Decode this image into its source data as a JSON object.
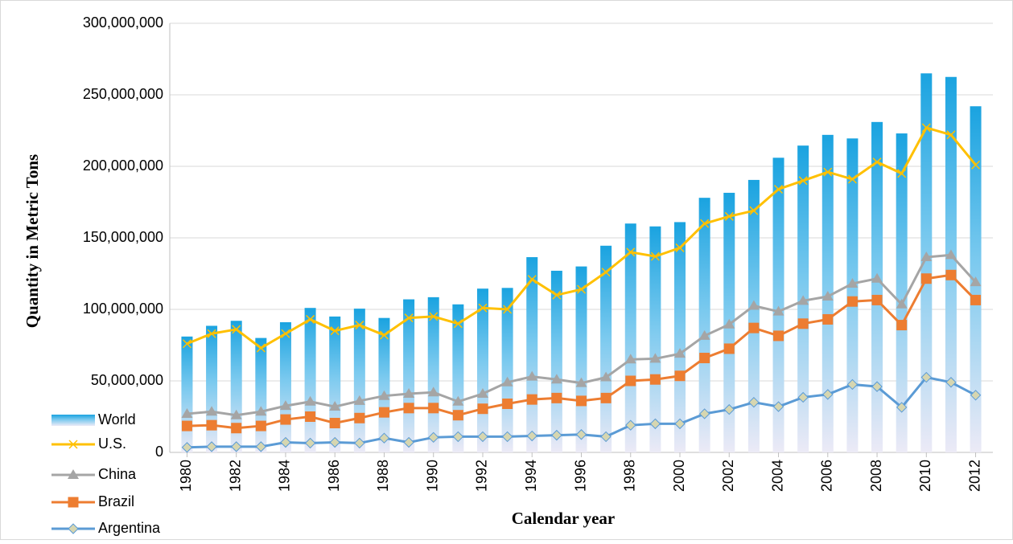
{
  "chart_data": {
    "type": "bar",
    "ylabel": "Quantity in Metric Tons",
    "xlabel": "Calendar year",
    "x": [
      1980,
      1981,
      1982,
      1983,
      1984,
      1985,
      1986,
      1987,
      1988,
      1989,
      1990,
      1991,
      1992,
      1993,
      1994,
      1995,
      1996,
      1997,
      1998,
      1999,
      2000,
      2001,
      2002,
      2003,
      2004,
      2005,
      2006,
      2007,
      2008,
      2009,
      2010,
      2011,
      2012
    ],
    "xlim": [
      1979.3,
      2012.7
    ],
    "xticks": [
      1980,
      1982,
      1984,
      1986,
      1988,
      1990,
      1992,
      1994,
      1996,
      1998,
      2000,
      2002,
      2004,
      2006,
      2008,
      2010,
      2012
    ],
    "ylim": [
      0,
      300000000
    ],
    "yticks": [
      0,
      {
        "value": 50000000,
        "label": "50,000,000"
      },
      {
        "value": 100000000,
        "label": "100,000,000"
      },
      {
        "value": 150000000,
        "label": "150,000,000"
      },
      {
        "value": 200000000,
        "label": "200,000,000"
      },
      {
        "value": 250000000,
        "label": "250,000,000"
      },
      {
        "value": 300000000,
        "label": "300,000,000"
      }
    ],
    "grid": true,
    "legend": "lower left",
    "series": [
      {
        "name": "World",
        "type": "bar",
        "color": "#1aa3e0",
        "values": [
          81000000,
          88500000,
          92000000,
          80000000,
          91000000,
          101000000,
          95000000,
          100500000,
          94000000,
          107000000,
          108500000,
          103500000,
          114500000,
          115000000,
          136500000,
          127000000,
          130000000,
          144500000,
          160000000,
          158000000,
          161000000,
          178000000,
          181500000,
          190500000,
          206000000,
          214500000,
          222000000,
          219500000,
          231000000,
          223000000,
          265000000,
          262500000,
          242000000
        ]
      },
      {
        "name": "U.S.",
        "type": "line",
        "color": "#ffc000",
        "marker": "x",
        "values": [
          76000000,
          83000000,
          86000000,
          73000000,
          83000000,
          93000000,
          85000000,
          89000000,
          82000000,
          94000000,
          95000000,
          90000000,
          101000000,
          100000000,
          121000000,
          110000000,
          114000000,
          126000000,
          140000000,
          137000000,
          143000000,
          160000000,
          165000000,
          169000000,
          184000000,
          190000000,
          196000000,
          191000000,
          203000000,
          195000000,
          227000000,
          222000000,
          201000000
        ]
      },
      {
        "name": "China",
        "type": "line",
        "color": "#a5a5a5",
        "marker": "triangle",
        "values": [
          27000000,
          28500000,
          26000000,
          28500000,
          32500000,
          35500000,
          32000000,
          36000000,
          39500000,
          41000000,
          42000000,
          35500000,
          41000000,
          49000000,
          53000000,
          51000000,
          48500000,
          52500000,
          65000000,
          65500000,
          69000000,
          81500000,
          89500000,
          102500000,
          98500000,
          106000000,
          109000000,
          118000000,
          121500000,
          103500000,
          136500000,
          138000000,
          119000000
        ]
      },
      {
        "name": "Brazil",
        "type": "line",
        "color": "#ed7d31",
        "marker": "square",
        "values": [
          18500000,
          19000000,
          17000000,
          18500000,
          23000000,
          25000000,
          20500000,
          24000000,
          28000000,
          31000000,
          31000000,
          26000000,
          30500000,
          34000000,
          37000000,
          38000000,
          36000000,
          38000000,
          50000000,
          51000000,
          53500000,
          66000000,
          72500000,
          87000000,
          81500000,
          90000000,
          93000000,
          105500000,
          106500000,
          89000000,
          121500000,
          124000000,
          106500000
        ]
      },
      {
        "name": "Argentina",
        "type": "line",
        "color": "#5b9bd5",
        "marker": "diamond",
        "marker_fill": "#d6d6b0",
        "values": [
          3500000,
          4000000,
          4000000,
          4000000,
          7000000,
          6500000,
          7000000,
          6500000,
          10000000,
          7000000,
          10500000,
          11000000,
          11000000,
          11000000,
          11500000,
          12000000,
          12500000,
          11000000,
          19000000,
          20000000,
          20000000,
          27000000,
          30000000,
          35000000,
          32000000,
          38500000,
          40500000,
          47500000,
          46000000,
          31500000,
          52500000,
          49000000,
          40000000
        ]
      }
    ]
  }
}
